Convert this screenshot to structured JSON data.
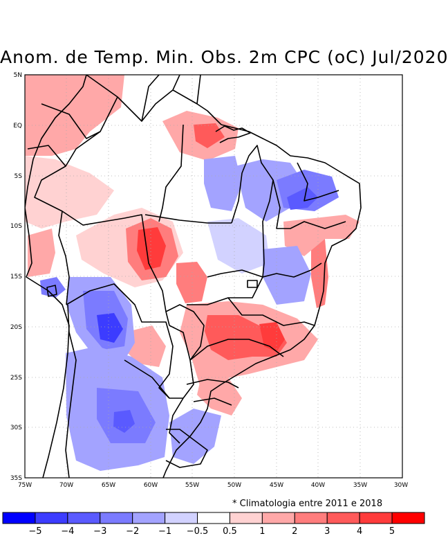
{
  "title": "Anom. de Temp. Min. Obs. 2m CPC (oC) Jul/2020",
  "footnote": "* Climatologia entre 2011 e 2018",
  "lon_ticks": [
    "75W",
    "70W",
    "65W",
    "60W",
    "55W",
    "50W",
    "45W",
    "40W",
    "35W",
    "30W"
  ],
  "lat_ticks": [
    "5N",
    "EQ",
    "5S",
    "10S",
    "15S",
    "20S",
    "25S",
    "30S",
    "35S"
  ],
  "colorbar": {
    "colors": [
      "#0000ff",
      "#3c3cff",
      "#5a5aff",
      "#7b7bff",
      "#a3a3ff",
      "#d2d2ff",
      "#ffffff",
      "#ffd2d2",
      "#ffa8a8",
      "#ff7d7d",
      "#ff5a5a",
      "#ff3b3b",
      "#ff0000"
    ],
    "labels": [
      "−5",
      "−4",
      "−3",
      "−2",
      "−1",
      "−0.5",
      "0.5",
      "1",
      "2",
      "3",
      "4",
      "5"
    ]
  }
}
